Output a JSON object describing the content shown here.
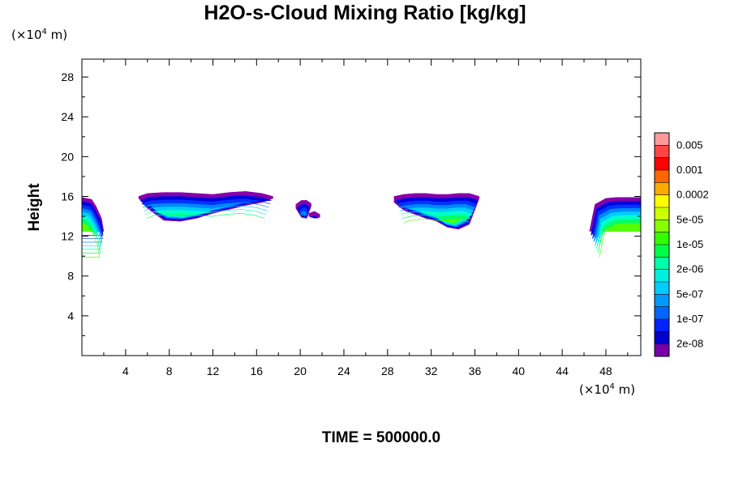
{
  "chart_data": {
    "type": "heatmap",
    "title": "H2O-s-Cloud Mixing Ratio [kg/kg]",
    "ylabel": "Height",
    "x_unit": {
      "prefix": "(×10",
      "exp": "4",
      "suffix": " m)"
    },
    "y_unit": {
      "prefix": "(×10",
      "exp": "4",
      "suffix": " m)"
    },
    "xlim": [
      0,
      51.2
    ],
    "ylim": [
      0,
      29.8
    ],
    "x_ticks": [
      "4",
      "8",
      "12",
      "16",
      "20",
      "24",
      "28",
      "32",
      "36",
      "40",
      "44",
      "48"
    ],
    "y_ticks": [
      "4",
      "8",
      "12",
      "16",
      "20",
      "24",
      "28"
    ],
    "footer": "TIME = 500000.0",
    "colorbar": {
      "labels": [
        "0.005",
        "0.001",
        "0.0002",
        "5e-05",
        "1e-05",
        "2e-06",
        "5e-07",
        "1e-07",
        "2e-08"
      ],
      "colors": [
        "#ff9999",
        "#ff4444",
        "#ff0000",
        "#ff6600",
        "#ffaa00",
        "#ffff00",
        "#ccff00",
        "#88ff00",
        "#33ff00",
        "#00ff44",
        "#00ffaa",
        "#00eedd",
        "#00ccff",
        "#0099ff",
        "#0066ff",
        "#0022ff",
        "#0000cc",
        "#7700aa"
      ]
    },
    "cloud_layers": [
      {
        "color": "#8800aa",
        "offset": 0.0
      },
      {
        "color": "#0000dd",
        "offset": 0.4
      },
      {
        "color": "#0033ff",
        "offset": 0.75
      },
      {
        "color": "#0088ff",
        "offset": 1.1
      },
      {
        "color": "#00ccff",
        "offset": 1.45
      },
      {
        "color": "#00ffcc",
        "offset": 1.8
      },
      {
        "color": "#00ff66",
        "offset": 2.2
      },
      {
        "color": "#55ff00",
        "offset": 2.6
      }
    ],
    "cloud_regions": [
      {
        "name": "cloud-left-edge",
        "x": [
          0,
          0.9,
          1.3,
          1.8,
          2.0,
          1.6,
          1.0,
          0.3,
          0
        ],
        "top": [
          15.9,
          15.7,
          15.0,
          13.8,
          12.5,
          12.5,
          12.5,
          12.5,
          12.5
        ],
        "bottom": [
          12.5,
          12.5,
          12.5,
          12.5,
          12.5,
          12.5,
          12.5,
          12.5,
          12.5
        ],
        "cut": "left"
      },
      {
        "name": "cloud-center-left",
        "x": [
          5.2,
          6.0,
          7.5,
          9.0,
          10.5,
          12.0,
          13.5,
          15.0,
          16.5,
          17.5
        ],
        "top": [
          16.0,
          16.3,
          16.4,
          16.4,
          16.3,
          16.2,
          16.4,
          16.5,
          16.3,
          16.0
        ],
        "bottom": [
          15.8,
          14.8,
          13.6,
          13.5,
          13.8,
          14.3,
          14.7,
          15.1,
          15.4,
          15.8
        ]
      },
      {
        "name": "cloud-small-a",
        "x": [
          19.6,
          20.1,
          20.6,
          21.0
        ],
        "top": [
          15.2,
          15.6,
          15.6,
          15.3
        ],
        "bottom": [
          14.8,
          13.9,
          13.8,
          15.0
        ]
      },
      {
        "name": "cloud-small-b",
        "x": [
          20.8,
          21.3,
          21.8
        ],
        "top": [
          14.3,
          14.5,
          14.2
        ],
        "bottom": [
          14.0,
          13.8,
          13.9
        ]
      },
      {
        "name": "cloud-center-right",
        "x": [
          28.6,
          29.5,
          30.5,
          31.5,
          32.5,
          33.5,
          34.5,
          35.5,
          36.4
        ],
        "top": [
          16.0,
          16.2,
          16.3,
          16.3,
          16.2,
          16.2,
          16.3,
          16.3,
          16.0
        ],
        "bottom": [
          15.4,
          14.6,
          14.2,
          13.8,
          13.5,
          12.9,
          12.7,
          13.2,
          15.8
        ]
      },
      {
        "name": "cloud-right-edge",
        "x": [
          46.5,
          47.0,
          48.0,
          49.0,
          50.0,
          51.2
        ],
        "top": [
          12.5,
          15.2,
          15.8,
          15.9,
          15.9,
          15.9
        ],
        "bottom": [
          12.5,
          12.5,
          12.5,
          12.5,
          12.5,
          12.5
        ],
        "cut": "right"
      }
    ]
  }
}
